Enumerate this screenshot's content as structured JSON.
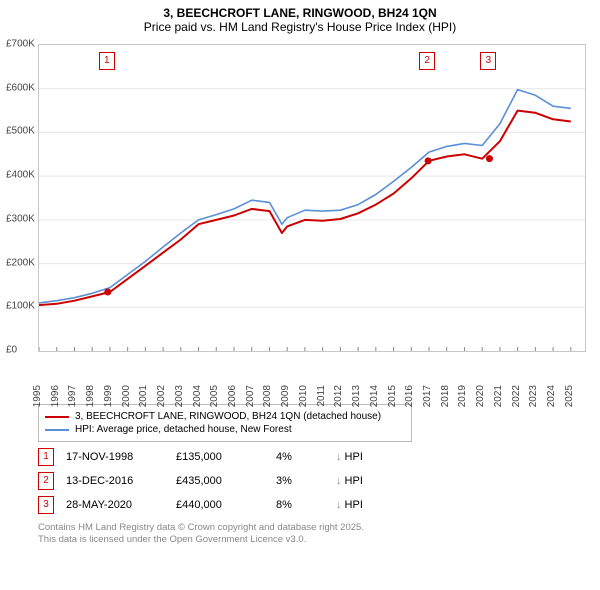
{
  "title_line1": "3, BEECHCROFT LANE, RINGWOOD, BH24 1QN",
  "title_line2": "Price paid vs. HM Land Registry's House Price Index (HPI)",
  "chart": {
    "type": "line",
    "background_color": "#ffffff",
    "grid_color": "#e6e6e6",
    "border_color": "#c8c8c8",
    "xlim": [
      1995,
      2025.8
    ],
    "ylim": [
      0,
      700000
    ],
    "ytick_step": 100000,
    "ytick_labels": [
      "£0",
      "£100K",
      "£200K",
      "£300K",
      "£400K",
      "£500K",
      "£600K",
      "£700K"
    ],
    "xticks": [
      1995,
      1996,
      1997,
      1998,
      1999,
      2000,
      2001,
      2002,
      2003,
      2004,
      2005,
      2006,
      2007,
      2008,
      2009,
      2010,
      2011,
      2012,
      2013,
      2014,
      2015,
      2016,
      2017,
      2018,
      2019,
      2020,
      2021,
      2022,
      2023,
      2024,
      2025
    ],
    "series": [
      {
        "name": "price_paid",
        "color": "#cc0000",
        "width": 2,
        "x": [
          1995,
          1996,
          1997,
          1998,
          1999,
          2000,
          2001,
          2002,
          2003,
          2004,
          2005,
          2006,
          2007,
          2008,
          2008.7,
          2009,
          2010,
          2011,
          2012,
          2013,
          2014,
          2015,
          2016,
          2017,
          2018,
          2019,
          2020,
          2021,
          2022,
          2023,
          2024,
          2025
        ],
        "y": [
          105000,
          108000,
          115000,
          125000,
          135000,
          165000,
          195000,
          225000,
          255000,
          290000,
          300000,
          310000,
          325000,
          320000,
          270000,
          285000,
          300000,
          298000,
          302000,
          315000,
          335000,
          360000,
          395000,
          435000,
          445000,
          450000,
          440000,
          480000,
          550000,
          545000,
          530000,
          525000
        ]
      },
      {
        "name": "hpi",
        "color": "#5b8fd6",
        "width": 1.6,
        "x": [
          1995,
          1996,
          1997,
          1998,
          1999,
          2000,
          2001,
          2002,
          2003,
          2004,
          2005,
          2006,
          2007,
          2008,
          2008.7,
          2009,
          2010,
          2011,
          2012,
          2013,
          2014,
          2015,
          2016,
          2017,
          2018,
          2019,
          2020,
          2021,
          2022,
          2023,
          2024,
          2025
        ],
        "y": [
          110000,
          115000,
          122000,
          132000,
          145000,
          175000,
          205000,
          238000,
          270000,
          300000,
          312000,
          325000,
          345000,
          340000,
          290000,
          305000,
          322000,
          320000,
          322000,
          335000,
          358000,
          388000,
          420000,
          455000,
          468000,
          475000,
          470000,
          520000,
          598000,
          585000,
          560000,
          555000
        ]
      }
    ],
    "sale_points": [
      {
        "idx": "1",
        "x": 1998.88,
        "y": 135000
      },
      {
        "idx": "2",
        "x": 2016.95,
        "y": 435000
      },
      {
        "idx": "3",
        "x": 2020.41,
        "y": 440000
      }
    ],
    "point_color": "#cc0000"
  },
  "legend": [
    {
      "color": "#cc0000",
      "label": "3, BEECHCROFT LANE, RINGWOOD, BH24 1QN (detached house)"
    },
    {
      "color": "#5b8fd6",
      "label": "HPI: Average price, detached house, New Forest"
    }
  ],
  "sales": [
    {
      "idx": "1",
      "date": "17-NOV-1998",
      "price": "£135,000",
      "pct": "4%",
      "arrow": "↓",
      "cmp": "HPI"
    },
    {
      "idx": "2",
      "date": "13-DEC-2016",
      "price": "£435,000",
      "pct": "3%",
      "arrow": "↓",
      "cmp": "HPI"
    },
    {
      "idx": "3",
      "date": "28-MAY-2020",
      "price": "£440,000",
      "pct": "8%",
      "arrow": "↓",
      "cmp": "HPI"
    }
  ],
  "footer_line1": "Contains HM Land Registry data © Crown copyright and database right 2025.",
  "footer_line2": "This data is licensed under the Open Government Licence v3.0."
}
